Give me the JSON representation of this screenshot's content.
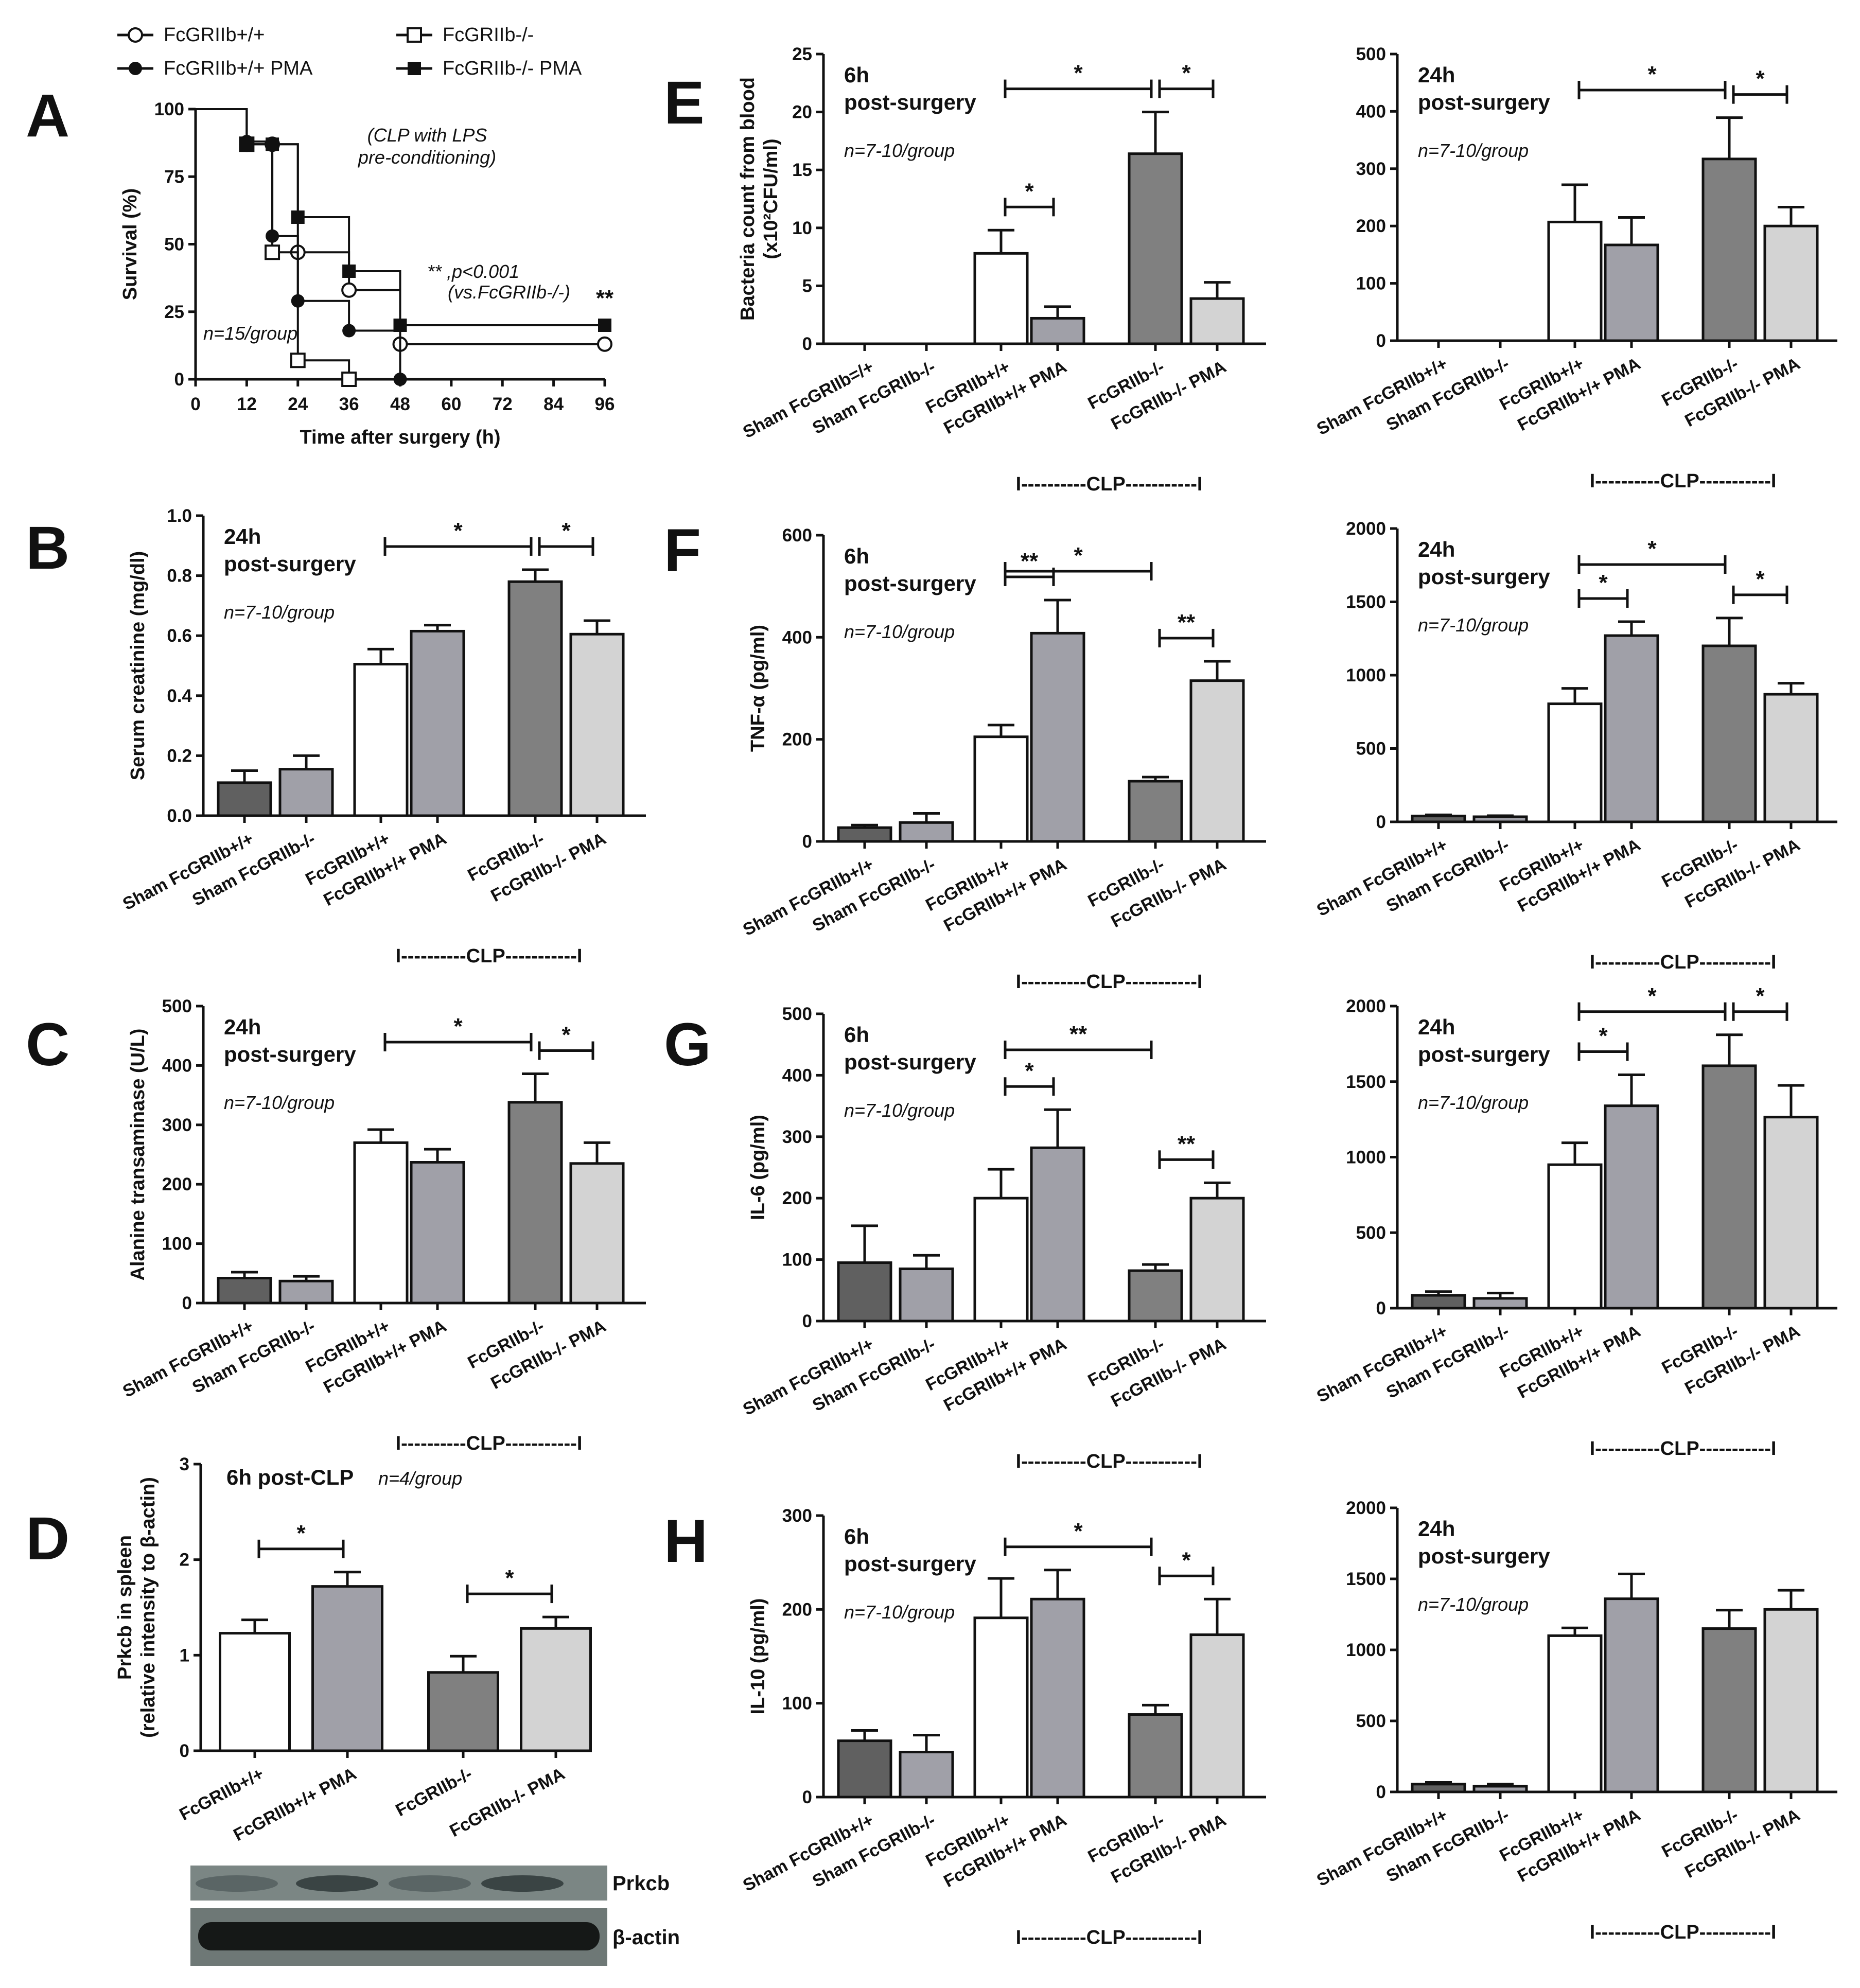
{
  "colors": {
    "wt": "#ffffff",
    "wt_pma": "#a0a0a8",
    "ko": "#808080",
    "ko_pma": "#d3d3d3",
    "sham_wt": "#606060",
    "sham_ko": "#a0a0a8",
    "ink": "#111111"
  },
  "clp_label": "I----------CLP-----------I",
  "chart_data": [
    {
      "id": "A",
      "panel": "A",
      "type": "line",
      "title": "(CLP with LPS pre-conditioning)",
      "title_lines": [
        "(CLP with LPS",
        "pre-conditioning)"
      ],
      "xlabel": "Time after surgery (h)",
      "ylabel": "Survival (%)",
      "xlim": [
        0,
        96
      ],
      "ylim": [
        0,
        100
      ],
      "xticks": [
        0,
        12,
        24,
        36,
        48,
        60,
        72,
        84,
        96
      ],
      "yticks": [
        0,
        25,
        50,
        75,
        100
      ],
      "note": "n=15/group",
      "stat_lines": [
        "** ,p<0.001",
        "(vs.FcGRIIb-/-)"
      ],
      "end_mark": "**",
      "series": [
        {
          "name": "FcGRIIb+/+",
          "marker": "open-circle",
          "x": [
            0,
            12,
            18,
            24,
            36,
            48,
            96
          ],
          "y": [
            100,
            87,
            87,
            47,
            33,
            13,
            13
          ]
        },
        {
          "name": "FcGRIIb-/-",
          "marker": "open-square",
          "x": [
            0,
            12,
            18,
            24,
            36
          ],
          "y": [
            100,
            87,
            47,
            7,
            0
          ]
        },
        {
          "name": "FcGRIIb+/+ PMA",
          "marker": "filled-circle",
          "x": [
            0,
            12,
            18,
            24,
            36,
            48
          ],
          "y": [
            100,
            88,
            53,
            29,
            18,
            0
          ]
        },
        {
          "name": "FcGRIIb-/- PMA",
          "marker": "filled-square",
          "x": [
            0,
            12,
            18,
            24,
            36,
            48,
            96
          ],
          "y": [
            100,
            87,
            87,
            60,
            40,
            20,
            20
          ]
        }
      ]
    },
    {
      "id": "E1",
      "panel": "E",
      "type": "bar",
      "ylabel": "Bacteria count from blood",
      "ylabel2": "(x10²CFU/ml)",
      "ylim": [
        0,
        25
      ],
      "yticks": [
        0,
        5,
        10,
        15,
        20,
        25
      ],
      "time_lines": [
        "6h",
        "post-surgery"
      ],
      "note": "n=7-10/group",
      "categories": [
        "Sham FcGRIIb=/+",
        "Sham FcGRIIb-/-",
        "FcGRIIb+/+",
        "FcGRIIb+/+ PMA",
        "FcGRIIb-/-",
        "FcGRIIb-/- PMA"
      ],
      "values": [
        0,
        0,
        7.8,
        2.2,
        16.4,
        3.9
      ],
      "errors": [
        0,
        0,
        2.0,
        1.0,
        3.6,
        1.4
      ],
      "sig": [
        {
          "from": 2,
          "to": 4,
          "label": "*"
        },
        {
          "from": 4,
          "to": 5,
          "label": "*"
        },
        {
          "from": 2,
          "to": 3,
          "label": "*"
        }
      ]
    },
    {
      "id": "E2",
      "panel": "",
      "type": "bar",
      "ylabel": "",
      "ylim": [
        0,
        500
      ],
      "yticks": [
        0,
        100,
        200,
        300,
        400,
        500
      ],
      "time_lines": [
        "24h",
        "post-surgery"
      ],
      "note": "n=7-10/group",
      "categories": [
        "Sham FcGRIIb+/+",
        "Sham FcGRIIb-/-",
        "FcGRIIb+/+",
        "FcGRIIb+/+ PMA",
        "FcGRIIb-/-",
        "FcGRIIb-/- PMA"
      ],
      "values": [
        0,
        0,
        207,
        167,
        317,
        200
      ],
      "errors": [
        0,
        0,
        65,
        48,
        72,
        33
      ],
      "sig": [
        {
          "from": 2,
          "to": 4,
          "label": "*"
        },
        {
          "from": 4,
          "to": 5,
          "label": "*"
        }
      ]
    },
    {
      "id": "B",
      "panel": "B",
      "type": "bar",
      "ylabel": "Serum creatinine (mg/dl)",
      "ylim": [
        0,
        1.0
      ],
      "yticks": [
        "0.0",
        "0.2",
        "0.4",
        "0.6",
        "0.8",
        "1.0"
      ],
      "time_lines": [
        "24h",
        "post-surgery"
      ],
      "note": "n=7-10/group",
      "categories": [
        "Sham FcGRIIb+/+",
        "Sham FcGRIIb-/-",
        "FcGRIIb+/+",
        "FcGRIIb+/+ PMA",
        "FcGRIIb-/-",
        "FcGRIIb-/- PMA"
      ],
      "values": [
        0.11,
        0.155,
        0.505,
        0.615,
        0.78,
        0.605
      ],
      "errors": [
        0.04,
        0.045,
        0.05,
        0.02,
        0.04,
        0.045
      ],
      "sig": [
        {
          "from": 2,
          "to": 4,
          "label": "*"
        },
        {
          "from": 4,
          "to": 5,
          "label": "*"
        }
      ]
    },
    {
      "id": "F1",
      "panel": "F",
      "type": "bar",
      "ylabel": "TNF-α (pg/ml)",
      "ylim": [
        0,
        600
      ],
      "yticks": [
        0,
        200,
        400,
        600
      ],
      "time_lines": [
        "6h",
        "post-surgery"
      ],
      "note": "n=7-10/group",
      "categories": [
        "Sham FcGRIIb+/+",
        "Sham FcGRIIb-/-",
        "FcGRIIb+/+",
        "FcGRIIb+/+ PMA",
        "FcGRIIb-/-",
        "FcGRIIb-/- PMA"
      ],
      "values": [
        27,
        37,
        205,
        408,
        118,
        315
      ],
      "errors": [
        5,
        18,
        23,
        65,
        8,
        38
      ],
      "sig": [
        {
          "from": 2,
          "to": 4,
          "label": "*"
        },
        {
          "from": 2,
          "to": 3,
          "label": "**"
        },
        {
          "from": 4,
          "to": 5,
          "label": "**"
        }
      ]
    },
    {
      "id": "F2",
      "panel": "",
      "type": "bar",
      "ylabel": "",
      "ylim": [
        0,
        2000
      ],
      "yticks": [
        0,
        500,
        1000,
        1500,
        2000
      ],
      "time_lines": [
        "24h",
        "post-surgery"
      ],
      "note": "n=7-10/group",
      "categories": [
        "Sham FcGRIIb+/+",
        "Sham FcGRIIb-/-",
        "FcGRIIb+/+",
        "FcGRIIb+/+ PMA",
        "FcGRIIb-/-",
        "FcGRIIb-/- PMA"
      ],
      "values": [
        40,
        35,
        805,
        1270,
        1200,
        870
      ],
      "errors": [
        8,
        7,
        105,
        95,
        190,
        75
      ],
      "sig": [
        {
          "from": 2,
          "to": 4,
          "label": "*"
        },
        {
          "from": 2,
          "to": 3,
          "label": "*"
        },
        {
          "from": 4,
          "to": 5,
          "label": "*"
        }
      ]
    },
    {
      "id": "C",
      "panel": "C",
      "type": "bar",
      "ylabel": "Alanine transaminase (U/L)",
      "ylim": [
        0,
        500
      ],
      "yticks": [
        0,
        100,
        200,
        300,
        400,
        500
      ],
      "time_lines": [
        "24h",
        "post-surgery"
      ],
      "note": "n=7-10/group",
      "categories": [
        "Sham FcGRIIb+/+",
        "Sham FcGRIIb-/-",
        "FcGRIIb+/+",
        "FcGRIIb+/+ PMA",
        "FcGRIIb-/-",
        "FcGRIIb-/- PMA"
      ],
      "values": [
        42,
        37,
        270,
        237,
        338,
        235
      ],
      "errors": [
        10,
        8,
        22,
        22,
        48,
        35
      ],
      "sig": [
        {
          "from": 2,
          "to": 4,
          "label": "*"
        },
        {
          "from": 4,
          "to": 5,
          "label": "*"
        }
      ]
    },
    {
      "id": "G1",
      "panel": "G",
      "type": "bar",
      "ylabel": "IL-6 (pg/ml)",
      "ylim": [
        0,
        500
      ],
      "yticks": [
        0,
        100,
        200,
        300,
        400,
        500
      ],
      "time_lines": [
        "6h",
        "post-surgery"
      ],
      "note": "n=7-10/group",
      "categories": [
        "Sham FcGRIIb+/+",
        "Sham FcGRIIb-/-",
        "FcGRIIb+/+",
        "FcGRIIb+/+ PMA",
        "FcGRIIb-/-",
        "FcGRIIb-/- PMA"
      ],
      "values": [
        95,
        85,
        200,
        282,
        82,
        200
      ],
      "errors": [
        60,
        22,
        47,
        62,
        10,
        25
      ],
      "sig": [
        {
          "from": 2,
          "to": 4,
          "label": "**"
        },
        {
          "from": 2,
          "to": 3,
          "label": "*"
        },
        {
          "from": 4,
          "to": 5,
          "label": "**"
        }
      ]
    },
    {
      "id": "G2",
      "panel": "",
      "type": "bar",
      "ylabel": "",
      "ylim": [
        0,
        2000
      ],
      "yticks": [
        0,
        500,
        1000,
        1500,
        2000
      ],
      "time_lines": [
        "24h",
        "post-surgery"
      ],
      "note": "n=7-10/group",
      "categories": [
        "Sham FcGRIIb+/+",
        "Sham FcGRIIb-/-",
        "FcGRIIb+/+",
        "FcGRIIb+/+ PMA",
        "FcGRIIb-/-",
        "FcGRIIb-/- PMA"
      ],
      "values": [
        85,
        65,
        950,
        1340,
        1605,
        1265
      ],
      "errors": [
        25,
        35,
        145,
        205,
        205,
        210
      ],
      "sig": [
        {
          "from": 2,
          "to": 4,
          "label": "*"
        },
        {
          "from": 2,
          "to": 3,
          "label": "*"
        },
        {
          "from": 4,
          "to": 5,
          "label": "*"
        }
      ]
    },
    {
      "id": "D",
      "panel": "D",
      "type": "bar",
      "ylabel": "Prkcb in spleen",
      "ylabel2": "(relative intensity to β-actin)",
      "ylim": [
        0,
        3
      ],
      "yticks": [
        0,
        1,
        2,
        3
      ],
      "title": "6h post-CLP",
      "note": "n=4/group",
      "categories": [
        "FcGRIIb+/+",
        "FcGRIIb+/+ PMA",
        "FcGRIIb-/-",
        "FcGRIIb-/- PMA"
      ],
      "values": [
        1.23,
        1.72,
        0.82,
        1.28
      ],
      "errors": [
        0.14,
        0.15,
        0.17,
        0.12
      ],
      "sig": [
        {
          "from": 0,
          "to": 1,
          "label": "*"
        },
        {
          "from": 2,
          "to": 3,
          "label": "*"
        }
      ],
      "blot_labels": [
        "Prkcb",
        "β-actin"
      ]
    },
    {
      "id": "H1",
      "panel": "H",
      "type": "bar",
      "ylabel": "IL-10 (pg/ml)",
      "ylim": [
        0,
        300
      ],
      "yticks": [
        0,
        100,
        200,
        300
      ],
      "time_lines": [
        "6h",
        "post-surgery"
      ],
      "note": "n=7-10/group",
      "categories": [
        "Sham FcGRIIb+/+",
        "Sham FcGRIIb-/-",
        "FcGRIIb+/+",
        "FcGRIIb+/+ PMA",
        "FcGRIIb-/-",
        "FcGRIIb-/- PMA"
      ],
      "values": [
        60,
        48,
        191,
        211,
        88,
        173
      ],
      "errors": [
        11,
        18,
        42,
        31,
        10,
        38
      ],
      "sig": [
        {
          "from": 2,
          "to": 4,
          "label": "*"
        },
        {
          "from": 4,
          "to": 5,
          "label": "*"
        }
      ]
    },
    {
      "id": "H2",
      "panel": "",
      "type": "bar",
      "ylabel": "",
      "ylim": [
        0,
        2000
      ],
      "yticks": [
        0,
        500,
        1000,
        1500,
        2000
      ],
      "time_lines": [
        "24h",
        "post-surgery"
      ],
      "note": "n=7-10/group",
      "categories": [
        "Sham FcGRIIb+/+",
        "Sham FcGRIIb-/-",
        "FcGRIIb+/+",
        "FcGRIIb+/+ PMA",
        "FcGRIIb-/-",
        "FcGRIIb-/- PMA"
      ],
      "values": [
        55,
        40,
        1100,
        1360,
        1150,
        1285
      ],
      "errors": [
        12,
        15,
        55,
        175,
        130,
        135
      ],
      "sig": []
    }
  ]
}
